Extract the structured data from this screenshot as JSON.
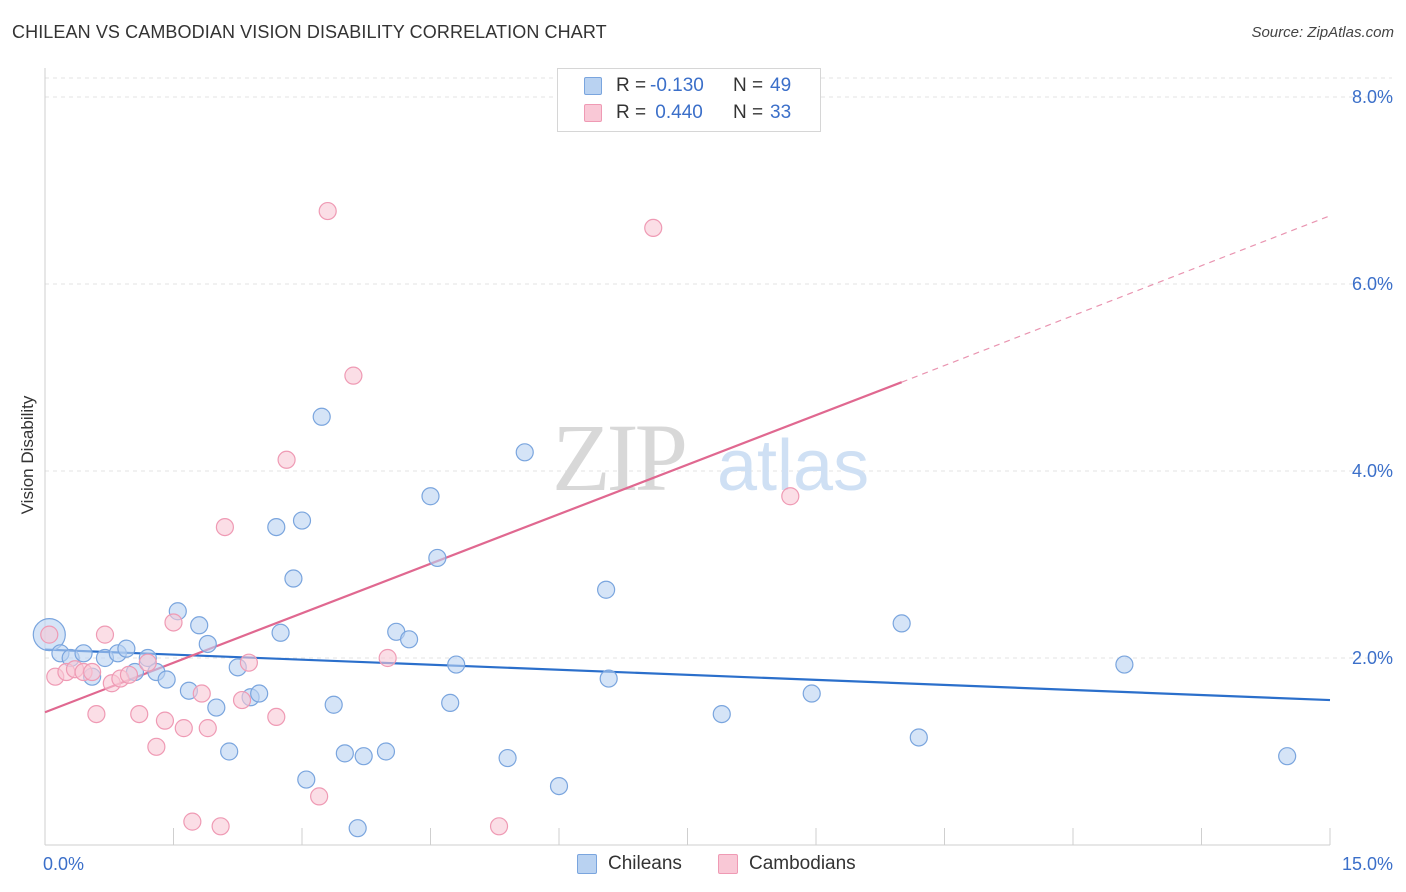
{
  "title": "CHILEAN VS CAMBODIAN VISION DISABILITY CORRELATION CHART",
  "source": "Source: ZipAtlas.com",
  "watermark": {
    "zip": "ZIP",
    "atlas": "atlas"
  },
  "legend": {
    "rows": [
      {
        "r_label": "R =",
        "r_value": "-0.130",
        "n_label": "N =",
        "n_value": "49"
      },
      {
        "r_label": "R =",
        "r_value": " 0.440",
        "n_label": "N =",
        "n_value": "33"
      }
    ]
  },
  "colors": {
    "chileans_fill": "#b9d2f1",
    "chileans_stroke": "#7aa5de",
    "chileans_line": "#2b6fcb",
    "cambodians_fill": "#f9c8d6",
    "cambodians_stroke": "#ef9ab4",
    "cambodians_line": "#e06890",
    "axis_text": "#3b6fc9",
    "grid": "#e3e3e3"
  },
  "chart_data": {
    "type": "scatter",
    "title": "CHILEAN VS CAMBODIAN VISION DISABILITY CORRELATION CHART",
    "xlabel": "",
    "ylabel": "Vision Disability",
    "xlim": [
      0,
      15
    ],
    "ylim": [
      0,
      8.2
    ],
    "x_tick_labels": [
      {
        "value": 0,
        "label": "0.0%"
      },
      {
        "value": 15,
        "label": "15.0%"
      }
    ],
    "y_ticks": [
      {
        "value": 2,
        "label": "2.0%"
      },
      {
        "value": 4,
        "label": "4.0%"
      },
      {
        "value": 6,
        "label": "6.0%"
      },
      {
        "value": 8,
        "label": "8.0%"
      }
    ],
    "series": [
      {
        "name": "Chileans",
        "points": [
          [
            0.05,
            2.25
          ],
          [
            0.18,
            2.05
          ],
          [
            0.3,
            2.0
          ],
          [
            0.45,
            2.05
          ],
          [
            0.55,
            1.8
          ],
          [
            0.7,
            2.0
          ],
          [
            0.85,
            2.05
          ],
          [
            0.95,
            2.1
          ],
          [
            1.05,
            1.85
          ],
          [
            1.2,
            2.0
          ],
          [
            1.3,
            1.85
          ],
          [
            1.42,
            1.77
          ],
          [
            1.55,
            2.5
          ],
          [
            1.68,
            1.65
          ],
          [
            1.8,
            2.35
          ],
          [
            1.9,
            2.15
          ],
          [
            2.0,
            1.47
          ],
          [
            2.15,
            1.0
          ],
          [
            2.25,
            1.9
          ],
          [
            2.4,
            1.58
          ],
          [
            2.5,
            1.62
          ],
          [
            2.7,
            3.4
          ],
          [
            2.75,
            2.27
          ],
          [
            2.9,
            2.85
          ],
          [
            3.0,
            3.47
          ],
          [
            3.05,
            0.7
          ],
          [
            3.23,
            4.58
          ],
          [
            3.37,
            1.5
          ],
          [
            3.5,
            0.98
          ],
          [
            3.65,
            0.18
          ],
          [
            3.72,
            0.95
          ],
          [
            3.98,
            1.0
          ],
          [
            4.1,
            2.28
          ],
          [
            4.25,
            2.2
          ],
          [
            4.5,
            3.73
          ],
          [
            4.58,
            3.07
          ],
          [
            4.73,
            1.52
          ],
          [
            4.8,
            1.93
          ],
          [
            5.4,
            0.93
          ],
          [
            5.6,
            4.2
          ],
          [
            6.0,
            0.63
          ],
          [
            6.55,
            2.73
          ],
          [
            6.58,
            1.78
          ],
          [
            7.9,
            1.4
          ],
          [
            8.95,
            1.62
          ],
          [
            10.0,
            2.37
          ],
          [
            10.2,
            1.15
          ],
          [
            12.6,
            1.93
          ],
          [
            14.5,
            0.95
          ]
        ],
        "trend": {
          "x": [
            0,
            15
          ],
          "y": [
            2.09,
            1.55
          ]
        }
      },
      {
        "name": "Cambodians",
        "points": [
          [
            0.05,
            2.25
          ],
          [
            0.12,
            1.8
          ],
          [
            0.25,
            1.85
          ],
          [
            0.35,
            1.88
          ],
          [
            0.45,
            1.85
          ],
          [
            0.6,
            1.4
          ],
          [
            0.7,
            2.25
          ],
          [
            0.78,
            1.73
          ],
          [
            0.88,
            1.78
          ],
          [
            0.98,
            1.82
          ],
          [
            1.1,
            1.4
          ],
          [
            1.2,
            1.95
          ],
          [
            1.3,
            1.05
          ],
          [
            1.4,
            1.33
          ],
          [
            1.5,
            2.38
          ],
          [
            1.62,
            1.25
          ],
          [
            1.72,
            0.25
          ],
          [
            1.83,
            1.62
          ],
          [
            1.9,
            1.25
          ],
          [
            2.05,
            0.2
          ],
          [
            2.1,
            3.4
          ],
          [
            2.3,
            1.55
          ],
          [
            2.38,
            1.95
          ],
          [
            2.7,
            1.37
          ],
          [
            2.82,
            4.12
          ],
          [
            3.2,
            0.52
          ],
          [
            3.3,
            6.78
          ],
          [
            3.6,
            5.02
          ],
          [
            4.0,
            2.0
          ],
          [
            5.3,
            0.2
          ],
          [
            7.1,
            6.6
          ],
          [
            8.7,
            3.73
          ],
          [
            0.55,
            1.85
          ]
        ],
        "trend": {
          "x": [
            0,
            10.0
          ],
          "y": [
            1.42,
            4.95
          ]
        },
        "trend_extension": {
          "x": [
            10.0,
            15
          ],
          "y": [
            4.95,
            6.73
          ]
        }
      }
    ],
    "legend_position": "top-center"
  },
  "bottom_legend": [
    {
      "label": "Chileans"
    },
    {
      "label": "Cambodians"
    }
  ]
}
